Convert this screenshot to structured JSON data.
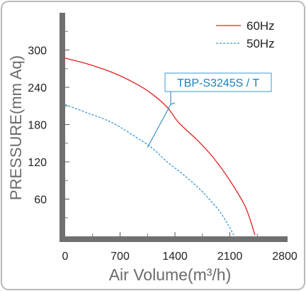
{
  "chart_data": {
    "type": "line",
    "title": "",
    "xlabel": "Air Volume(m³/h)",
    "ylabel": "PRESSURE(mm Aq)",
    "xlim": [
      0,
      2800
    ],
    "ylim": [
      0,
      360
    ],
    "x_ticks": [
      "0",
      "700",
      "1400",
      "2100",
      "2800"
    ],
    "y_ticks": [
      "60",
      "120",
      "180",
      "240",
      "300"
    ],
    "grid": false,
    "legend_position": "top-right",
    "series": [
      {
        "name": "60Hz",
        "color": "#e02020",
        "style": "solid",
        "x": [
          0,
          300,
          600,
          900,
          1100,
          1300,
          1450,
          1700,
          1900,
          2100,
          2300,
          2420
        ],
        "y": [
          287,
          277,
          264,
          246,
          230,
          208,
          183,
          153,
          125,
          90,
          47,
          2
        ]
      },
      {
        "name": "50Hz",
        "color": "#3a9ad9",
        "style": "dashed",
        "x": [
          0,
          300,
          600,
          900,
          1100,
          1300,
          1500,
          1700,
          1850,
          2000,
          2150
        ],
        "y": [
          212,
          198,
          183,
          160,
          143,
          120,
          100,
          78,
          58,
          35,
          2
        ]
      }
    ],
    "annotation": {
      "text": "TBP-S3245S / T",
      "color": "#1e7fc0",
      "targets": [
        {
          "x": 1350,
          "y": 213
        },
        {
          "x": 1050,
          "y": 143
        }
      ]
    }
  }
}
